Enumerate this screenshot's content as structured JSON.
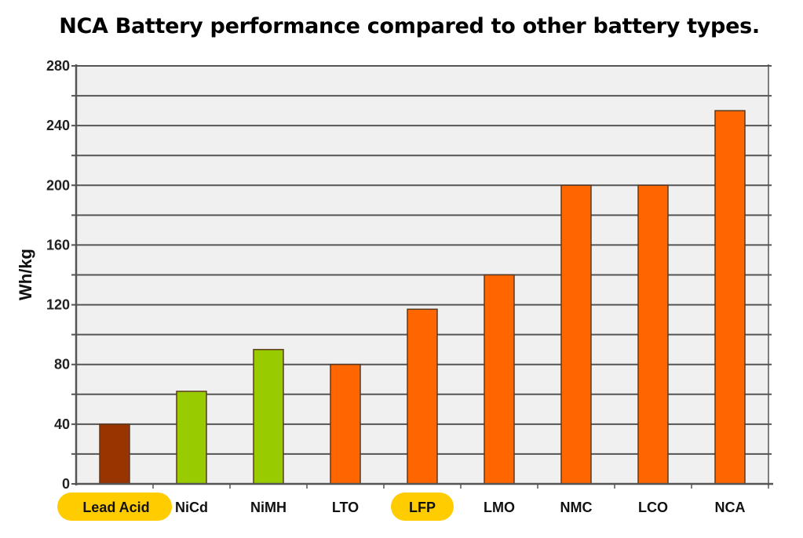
{
  "chart_data": {
    "type": "bar",
    "title": "NCA Battery performance compared to other battery types.",
    "xlabel": "",
    "ylabel": "Wh/kg",
    "ylim": [
      0,
      280
    ],
    "yticks": [
      0,
      40,
      80,
      120,
      160,
      200,
      240,
      280
    ],
    "grid_step": 20,
    "grid": true,
    "categories": [
      "Lead Acid",
      "NiCd",
      "NiMH",
      "LTO",
      "LFP",
      "LMO",
      "NMC",
      "LCO",
      "NCA"
    ],
    "values": [
      40,
      62,
      90,
      80,
      117,
      140,
      200,
      200,
      250
    ],
    "bar_colors": [
      "#993300",
      "#99cc00",
      "#99cc00",
      "#ff6600",
      "#ff6600",
      "#ff6600",
      "#ff6600",
      "#ff6600",
      "#ff6600"
    ],
    "highlighted_categories": [
      "Lead Acid",
      "LFP"
    ],
    "highlight_color": "#ffcc00",
    "plot_background": "#f0f0f0",
    "gridline_color": "#555555"
  }
}
